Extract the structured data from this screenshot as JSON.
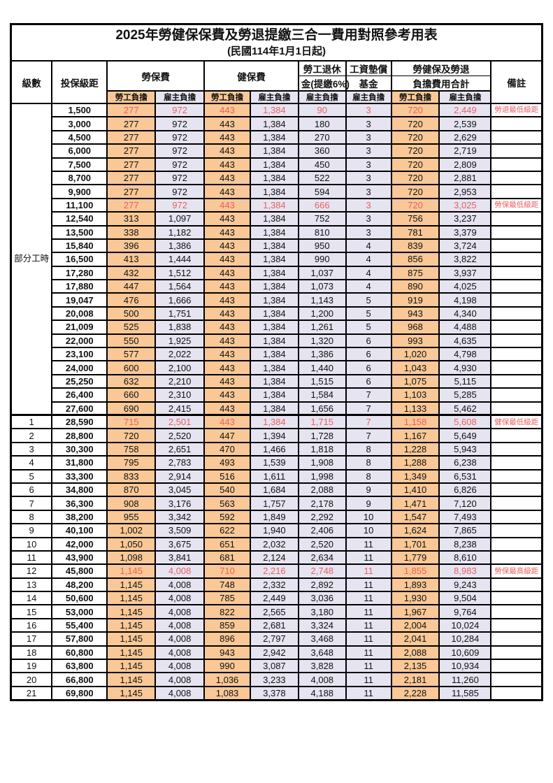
{
  "title": "2025年勞健保保費及勞退提繳三合一費用對照參考用表",
  "subtitle": "(民國114年1月1日起)",
  "header": {
    "level": "級數",
    "bracket": "投保級距",
    "labor_insurance": "勞保費",
    "health_insurance": "健保費",
    "pension_line1": "勞工退休",
    "pension_line2": "金(提繳6%)",
    "wage_fund_line1": "工資墊償",
    "wage_fund_line2": "基金",
    "total_line1": "勞健保及勞退",
    "total_line2": "負擔費用合計",
    "note": "備註",
    "employee": "勞工負擔",
    "employer": "雇主負擔"
  },
  "part_time_label": "部分工時",
  "part_time_rowspan": 23,
  "colors": {
    "employee_bg": "#F9C896",
    "employer_bg": "#E6E4F1",
    "highlight_red": "#EC6060",
    "border": "#000000",
    "background": "#FFFFFF"
  },
  "row_fields": [
    "level",
    "bracket",
    "labor_emp",
    "labor_er",
    "health_emp",
    "health_er",
    "pension_er",
    "fund_er",
    "total_emp",
    "total_er",
    "note",
    "is_red"
  ],
  "rows": [
    [
      "",
      "1,500",
      "277",
      "972",
      "443",
      "1,384",
      "90",
      "3",
      "720",
      "2,449",
      "勞退最低級距",
      1
    ],
    [
      "",
      "3,000",
      "277",
      "972",
      "443",
      "1,384",
      "180",
      "3",
      "720",
      "2,539",
      "",
      0
    ],
    [
      "",
      "4,500",
      "277",
      "972",
      "443",
      "1,384",
      "270",
      "3",
      "720",
      "2,629",
      "",
      0
    ],
    [
      "",
      "6,000",
      "277",
      "972",
      "443",
      "1,384",
      "360",
      "3",
      "720",
      "2,719",
      "",
      0
    ],
    [
      "",
      "7,500",
      "277",
      "972",
      "443",
      "1,384",
      "450",
      "3",
      "720",
      "2,809",
      "",
      0
    ],
    [
      "",
      "8,700",
      "277",
      "972",
      "443",
      "1,384",
      "522",
      "3",
      "720",
      "2,881",
      "",
      0
    ],
    [
      "",
      "9,900",
      "277",
      "972",
      "443",
      "1,384",
      "594",
      "3",
      "720",
      "2,953",
      "",
      0
    ],
    [
      "",
      "11,100",
      "277",
      "972",
      "443",
      "1,384",
      "666",
      "3",
      "720",
      "3,025",
      "勞保最低級距",
      1
    ],
    [
      "",
      "12,540",
      "313",
      "1,097",
      "443",
      "1,384",
      "752",
      "3",
      "756",
      "3,237",
      "",
      0
    ],
    [
      "",
      "13,500",
      "338",
      "1,182",
      "443",
      "1,384",
      "810",
      "3",
      "781",
      "3,379",
      "",
      0
    ],
    [
      "",
      "15,840",
      "396",
      "1,386",
      "443",
      "1,384",
      "950",
      "4",
      "839",
      "3,724",
      "",
      0
    ],
    [
      "",
      "16,500",
      "413",
      "1,444",
      "443",
      "1,384",
      "990",
      "4",
      "856",
      "3,822",
      "",
      0
    ],
    [
      "",
      "17,280",
      "432",
      "1,512",
      "443",
      "1,384",
      "1,037",
      "4",
      "875",
      "3,937",
      "",
      0
    ],
    [
      "",
      "17,880",
      "447",
      "1,564",
      "443",
      "1,384",
      "1,073",
      "4",
      "890",
      "4,025",
      "",
      0
    ],
    [
      "",
      "19,047",
      "476",
      "1,666",
      "443",
      "1,384",
      "1,143",
      "5",
      "919",
      "4,198",
      "",
      0
    ],
    [
      "",
      "20,008",
      "500",
      "1,751",
      "443",
      "1,384",
      "1,200",
      "5",
      "943",
      "4,340",
      "",
      0
    ],
    [
      "",
      "21,009",
      "525",
      "1,838",
      "443",
      "1,384",
      "1,261",
      "5",
      "968",
      "4,488",
      "",
      0
    ],
    [
      "",
      "22,000",
      "550",
      "1,925",
      "443",
      "1,384",
      "1,320",
      "6",
      "993",
      "4,635",
      "",
      0
    ],
    [
      "",
      "23,100",
      "577",
      "2,022",
      "443",
      "1,384",
      "1,386",
      "6",
      "1,020",
      "4,798",
      "",
      0
    ],
    [
      "",
      "24,000",
      "600",
      "2,100",
      "443",
      "1,384",
      "1,440",
      "6",
      "1,043",
      "4,930",
      "",
      0
    ],
    [
      "",
      "25,250",
      "632",
      "2,210",
      "443",
      "1,384",
      "1,515",
      "6",
      "1,075",
      "5,115",
      "",
      0
    ],
    [
      "",
      "26,400",
      "660",
      "2,310",
      "443",
      "1,384",
      "1,584",
      "7",
      "1,103",
      "5,285",
      "",
      0
    ],
    [
      "",
      "27,600",
      "690",
      "2,415",
      "443",
      "1,384",
      "1,656",
      "7",
      "1,133",
      "5,462",
      "",
      0
    ],
    [
      "1",
      "28,590",
      "715",
      "2,501",
      "443",
      "1,384",
      "1,715",
      "7",
      "1,158",
      "5,608",
      "健保最低級距",
      1
    ],
    [
      "2",
      "28,800",
      "720",
      "2,520",
      "447",
      "1,394",
      "1,728",
      "7",
      "1,167",
      "5,649",
      "",
      0
    ],
    [
      "3",
      "30,300",
      "758",
      "2,651",
      "470",
      "1,466",
      "1,818",
      "8",
      "1,228",
      "5,943",
      "",
      0
    ],
    [
      "4",
      "31,800",
      "795",
      "2,783",
      "493",
      "1,539",
      "1,908",
      "8",
      "1,288",
      "6,238",
      "",
      0
    ],
    [
      "5",
      "33,300",
      "833",
      "2,914",
      "516",
      "1,611",
      "1,998",
      "8",
      "1,349",
      "6,531",
      "",
      0
    ],
    [
      "6",
      "34,800",
      "870",
      "3,045",
      "540",
      "1,684",
      "2,088",
      "9",
      "1,410",
      "6,826",
      "",
      0
    ],
    [
      "7",
      "36,300",
      "908",
      "3,176",
      "563",
      "1,757",
      "2,178",
      "9",
      "1,471",
      "7,120",
      "",
      0
    ],
    [
      "8",
      "38,200",
      "955",
      "3,342",
      "592",
      "1,849",
      "2,292",
      "10",
      "1,547",
      "7,493",
      "",
      0
    ],
    [
      "9",
      "40,100",
      "1,002",
      "3,509",
      "622",
      "1,940",
      "2,406",
      "10",
      "1,624",
      "7,865",
      "",
      0
    ],
    [
      "10",
      "42,000",
      "1,050",
      "3,675",
      "651",
      "2,032",
      "2,520",
      "11",
      "1,701",
      "8,238",
      "",
      0
    ],
    [
      "11",
      "43,900",
      "1,098",
      "3,841",
      "681",
      "2,124",
      "2,634",
      "11",
      "1,779",
      "8,610",
      "",
      0
    ],
    [
      "12",
      "45,800",
      "1,145",
      "4,008",
      "710",
      "2,216",
      "2,748",
      "11",
      "1,855",
      "8,983",
      "勞保最高級距",
      1
    ],
    [
      "13",
      "48,200",
      "1,145",
      "4,008",
      "748",
      "2,332",
      "2,892",
      "11",
      "1,893",
      "9,243",
      "",
      0
    ],
    [
      "14",
      "50,600",
      "1,145",
      "4,008",
      "785",
      "2,449",
      "3,036",
      "11",
      "1,930",
      "9,504",
      "",
      0
    ],
    [
      "15",
      "53,000",
      "1,145",
      "4,008",
      "822",
      "2,565",
      "3,180",
      "11",
      "1,967",
      "9,764",
      "",
      0
    ],
    [
      "16",
      "55,400",
      "1,145",
      "4,008",
      "859",
      "2,681",
      "3,324",
      "11",
      "2,004",
      "10,024",
      "",
      0
    ],
    [
      "17",
      "57,800",
      "1,145",
      "4,008",
      "896",
      "2,797",
      "3,468",
      "11",
      "2,041",
      "10,284",
      "",
      0
    ],
    [
      "18",
      "60,800",
      "1,145",
      "4,008",
      "943",
      "2,942",
      "3,648",
      "11",
      "2,088",
      "10,609",
      "",
      0
    ],
    [
      "19",
      "63,800",
      "1,145",
      "4,008",
      "990",
      "3,087",
      "3,828",
      "11",
      "2,135",
      "10,934",
      "",
      0
    ],
    [
      "20",
      "66,800",
      "1,145",
      "4,008",
      "1,036",
      "3,233",
      "4,008",
      "11",
      "2,181",
      "11,260",
      "",
      0
    ],
    [
      "21",
      "69,800",
      "1,145",
      "4,008",
      "1,083",
      "3,378",
      "4,188",
      "11",
      "2,228",
      "11,585",
      "",
      0
    ]
  ]
}
